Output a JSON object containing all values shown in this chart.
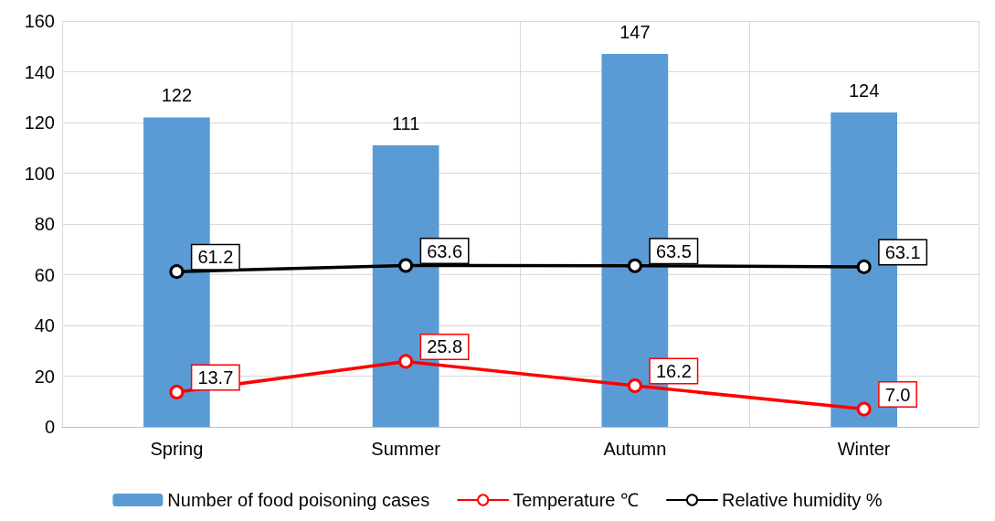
{
  "chart_data": {
    "type": "bar",
    "categories": [
      "Spring",
      "Summer",
      "Autumn",
      "Winter"
    ],
    "series": [
      {
        "name": "Number of food poisoning cases",
        "color": "#5b9bd5",
        "values": [
          122,
          111,
          147,
          124
        ]
      },
      {
        "name": "Temperature ℃",
        "type": "line",
        "color": "#ff0000",
        "values": [
          13.7,
          25.8,
          16.2,
          7.0
        ],
        "value_labels": [
          "13.7",
          "25.8",
          "16.2",
          "7.0"
        ]
      },
      {
        "name": "Relative humidity %",
        "type": "line",
        "color": "#000000",
        "values": [
          61.2,
          63.6,
          63.5,
          63.1
        ],
        "value_labels": [
          "61.2",
          "63.6",
          "63.5",
          "63.1"
        ]
      }
    ],
    "ylim": [
      0,
      160
    ],
    "yticks": [
      0,
      20,
      40,
      60,
      80,
      100,
      120,
      140,
      160
    ],
    "grid": true,
    "legend": "bottom",
    "marker": "circle",
    "line_style": "solid",
    "data_labels": true
  }
}
